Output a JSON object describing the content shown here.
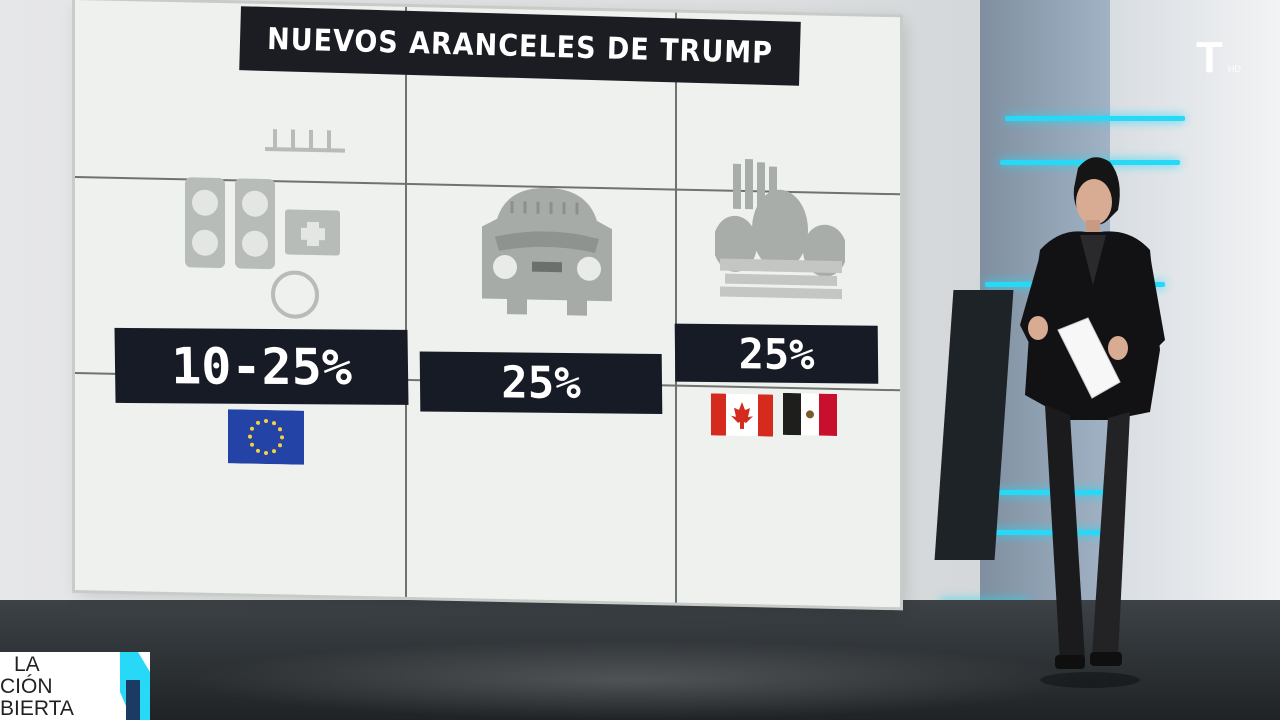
{
  "graphic": {
    "title": "NUEVOS ARANCELES DE TRUMP",
    "columns": [
      {
        "sector_icon": "medicine-icon",
        "percentage": "10-25%",
        "flags": [
          "eu-flag-icon"
        ]
      },
      {
        "sector_icon": "car-icon",
        "percentage": "25%",
        "flags": []
      },
      {
        "sector_icon": "produce-crate-icon",
        "percentage": "25%",
        "flags": [
          "canada-flag-icon",
          "mexico-flag-icon"
        ]
      }
    ]
  },
  "channel": {
    "logo": "T",
    "quality": "HD"
  },
  "show": {
    "line1": "LA",
    "line2": "CIÓN",
    "line3": "BIERTA"
  },
  "colors": {
    "accent": "#27d8f7",
    "label_bg": "#171b26",
    "screen_bg": "#eef1ee"
  }
}
